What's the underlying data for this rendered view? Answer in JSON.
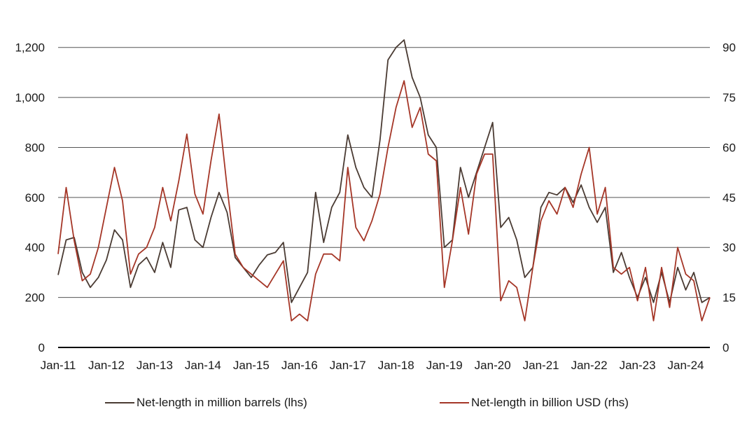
{
  "chart_data": {
    "type": "line",
    "title": "",
    "xlabel": "",
    "ylabel": "",
    "x_ticks": [
      "Jan-11",
      "Jan-12",
      "Jan-13",
      "Jan-14",
      "Jan-15",
      "Jan-16",
      "Jan-17",
      "Jan-18",
      "Jan-19",
      "Jan-20",
      "Jan-21",
      "Jan-22",
      "Jan-23",
      "Jan-24"
    ],
    "x_range": [
      "2011-01",
      "2024-07"
    ],
    "y_left": {
      "min": 0,
      "max": 1300,
      "ticks": [
        0,
        200,
        400,
        600,
        800,
        1000,
        1200
      ],
      "tick_labels": [
        "0",
        "200",
        "400",
        "600",
        "800",
        "1,000",
        "1,200"
      ]
    },
    "y_right": {
      "min": 0,
      "max": 97.5,
      "ticks": [
        0,
        15,
        30,
        45,
        60,
        75,
        90
      ],
      "tick_labels": [
        "0",
        "15",
        "30",
        "45",
        "60",
        "75",
        "90"
      ]
    },
    "grid": "horizontal",
    "legend_position": "bottom",
    "series": [
      {
        "name": "Net-length in million barrels (lhs)",
        "axis": "left",
        "color": "#4a3b33",
        "x": [
          "2011-01",
          "2011-03",
          "2011-05",
          "2011-07",
          "2011-09",
          "2011-11",
          "2012-01",
          "2012-03",
          "2012-05",
          "2012-07",
          "2012-09",
          "2012-11",
          "2013-01",
          "2013-03",
          "2013-05",
          "2013-07",
          "2013-09",
          "2013-11",
          "2014-01",
          "2014-03",
          "2014-05",
          "2014-07",
          "2014-09",
          "2014-11",
          "2015-01",
          "2015-03",
          "2015-05",
          "2015-07",
          "2015-09",
          "2015-11",
          "2016-01",
          "2016-03",
          "2016-05",
          "2016-07",
          "2016-09",
          "2016-11",
          "2017-01",
          "2017-03",
          "2017-05",
          "2017-07",
          "2017-09",
          "2017-11",
          "2018-01",
          "2018-03",
          "2018-05",
          "2018-07",
          "2018-09",
          "2018-11",
          "2019-01",
          "2019-03",
          "2019-05",
          "2019-07",
          "2019-09",
          "2019-11",
          "2020-01",
          "2020-03",
          "2020-05",
          "2020-07",
          "2020-09",
          "2020-11",
          "2021-01",
          "2021-03",
          "2021-05",
          "2021-07",
          "2021-09",
          "2021-11",
          "2022-01",
          "2022-03",
          "2022-05",
          "2022-07",
          "2022-09",
          "2022-11",
          "2023-01",
          "2023-03",
          "2023-05",
          "2023-07",
          "2023-09",
          "2023-11",
          "2024-01",
          "2024-03",
          "2024-05",
          "2024-07"
        ],
        "values": [
          290,
          430,
          440,
          300,
          240,
          280,
          350,
          470,
          430,
          240,
          330,
          360,
          300,
          420,
          320,
          550,
          560,
          430,
          400,
          520,
          620,
          540,
          360,
          320,
          280,
          330,
          370,
          380,
          420,
          180,
          240,
          300,
          620,
          420,
          560,
          620,
          850,
          720,
          640,
          600,
          830,
          1150,
          1200,
          1230,
          1080,
          1000,
          850,
          800,
          400,
          430,
          720,
          600,
          700,
          800,
          900,
          480,
          520,
          430,
          280,
          320,
          560,
          620,
          610,
          640,
          580,
          650,
          560,
          500,
          560,
          300,
          380,
          280,
          200,
          280,
          180,
          300,
          180,
          320,
          230,
          300,
          180,
          200
        ]
      },
      {
        "name": "Net-length in billion USD (rhs)",
        "axis": "right",
        "color": "#a53627",
        "x": [
          "2011-01",
          "2011-03",
          "2011-05",
          "2011-07",
          "2011-09",
          "2011-11",
          "2012-01",
          "2012-03",
          "2012-05",
          "2012-07",
          "2012-09",
          "2012-11",
          "2013-01",
          "2013-03",
          "2013-05",
          "2013-07",
          "2013-09",
          "2013-11",
          "2014-01",
          "2014-03",
          "2014-05",
          "2014-07",
          "2014-09",
          "2014-11",
          "2015-01",
          "2015-03",
          "2015-05",
          "2015-07",
          "2015-09",
          "2015-11",
          "2016-01",
          "2016-03",
          "2016-05",
          "2016-07",
          "2016-09",
          "2016-11",
          "2017-01",
          "2017-03",
          "2017-05",
          "2017-07",
          "2017-09",
          "2017-11",
          "2018-01",
          "2018-03",
          "2018-05",
          "2018-07",
          "2018-09",
          "2018-11",
          "2019-01",
          "2019-03",
          "2019-05",
          "2019-07",
          "2019-09",
          "2019-11",
          "2020-01",
          "2020-03",
          "2020-05",
          "2020-07",
          "2020-09",
          "2020-11",
          "2021-01",
          "2021-03",
          "2021-05",
          "2021-07",
          "2021-09",
          "2021-11",
          "2022-01",
          "2022-03",
          "2022-05",
          "2022-07",
          "2022-09",
          "2022-11",
          "2023-01",
          "2023-03",
          "2023-05",
          "2023-07",
          "2023-09",
          "2023-11",
          "2024-01",
          "2024-03",
          "2024-05",
          "2024-07"
        ],
        "values": [
          28,
          48,
          32,
          20,
          22,
          30,
          42,
          54,
          44,
          22,
          28,
          30,
          36,
          48,
          38,
          50,
          64,
          46,
          40,
          56,
          70,
          48,
          28,
          24,
          22,
          20,
          18,
          22,
          26,
          8,
          10,
          8,
          22,
          28,
          28,
          26,
          54,
          36,
          32,
          38,
          46,
          60,
          72,
          80,
          66,
          72,
          58,
          56,
          18,
          32,
          48,
          34,
          52,
          58,
          58,
          14,
          20,
          18,
          8,
          24,
          38,
          44,
          40,
          48,
          42,
          52,
          60,
          40,
          48,
          24,
          22,
          24,
          14,
          24,
          8,
          24,
          12,
          30,
          22,
          20,
          8,
          15
        ]
      }
    ]
  },
  "legend": [
    {
      "label": "Net-length in million barrels (lhs)",
      "color": "#4a3b33"
    },
    {
      "label": "Net-length in billion USD (rhs)",
      "color": "#a53627"
    }
  ]
}
